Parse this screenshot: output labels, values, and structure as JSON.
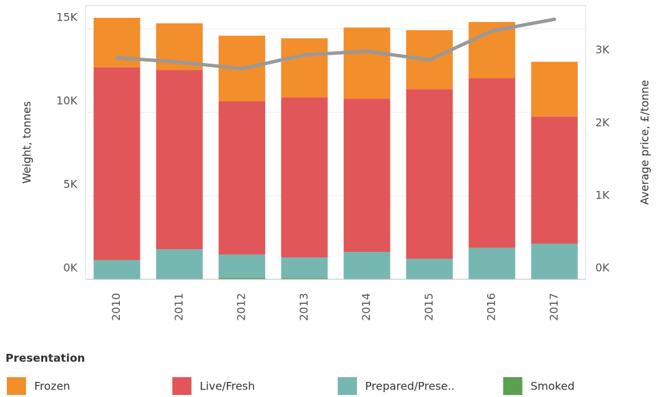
{
  "chart_data": {
    "type": "bar",
    "stacked": true,
    "categories": [
      "2010",
      "2011",
      "2012",
      "2013",
      "2014",
      "2015",
      "2016",
      "2017"
    ],
    "series": [
      {
        "name": "Frozen",
        "color": "#f28e2b",
        "values": [
          2960,
          2790,
          3930,
          3530,
          4260,
          3530,
          3360,
          3280
        ]
      },
      {
        "name": "Live/Fresh",
        "color": "#e15759",
        "values": [
          11550,
          10740,
          9180,
          9590,
          9180,
          10160,
          10160,
          7620
        ]
      },
      {
        "name": "Prepared/Prese..",
        "color": "#76b7b2",
        "values": [
          1150,
          1800,
          1400,
          1250,
          1640,
          1230,
          1890,
          2130
        ]
      },
      {
        "name": "Smoked",
        "color": "#59a14f",
        "values": [
          0,
          0,
          80,
          60,
          0,
          0,
          0,
          0
        ]
      },
      {
        "type": "line",
        "axis": "y2",
        "color": "#999999",
        "values": [
          3050,
          2990,
          2900,
          3090,
          3140,
          3020,
          3420,
          3580
        ]
      }
    ],
    "ylabel": "Weight, tonnes",
    "y2label": "Average price, £/tonne",
    "ylim": [
      0,
      16400
    ],
    "yticks": [
      {
        "value": 0,
        "label": "0K"
      },
      {
        "value": 5000,
        "label": "5K"
      },
      {
        "value": 10000,
        "label": "10K"
      },
      {
        "value": 15000,
        "label": "15K"
      }
    ],
    "y2lim": [
      0,
      3770
    ],
    "y2ticks": [
      {
        "value": 0,
        "label": "0K"
      },
      {
        "value": 1000,
        "label": "1K"
      },
      {
        "value": 2000,
        "label": "2K"
      },
      {
        "value": 3000,
        "label": "3K"
      }
    ],
    "legend_title": "Presentation",
    "grid": true
  }
}
